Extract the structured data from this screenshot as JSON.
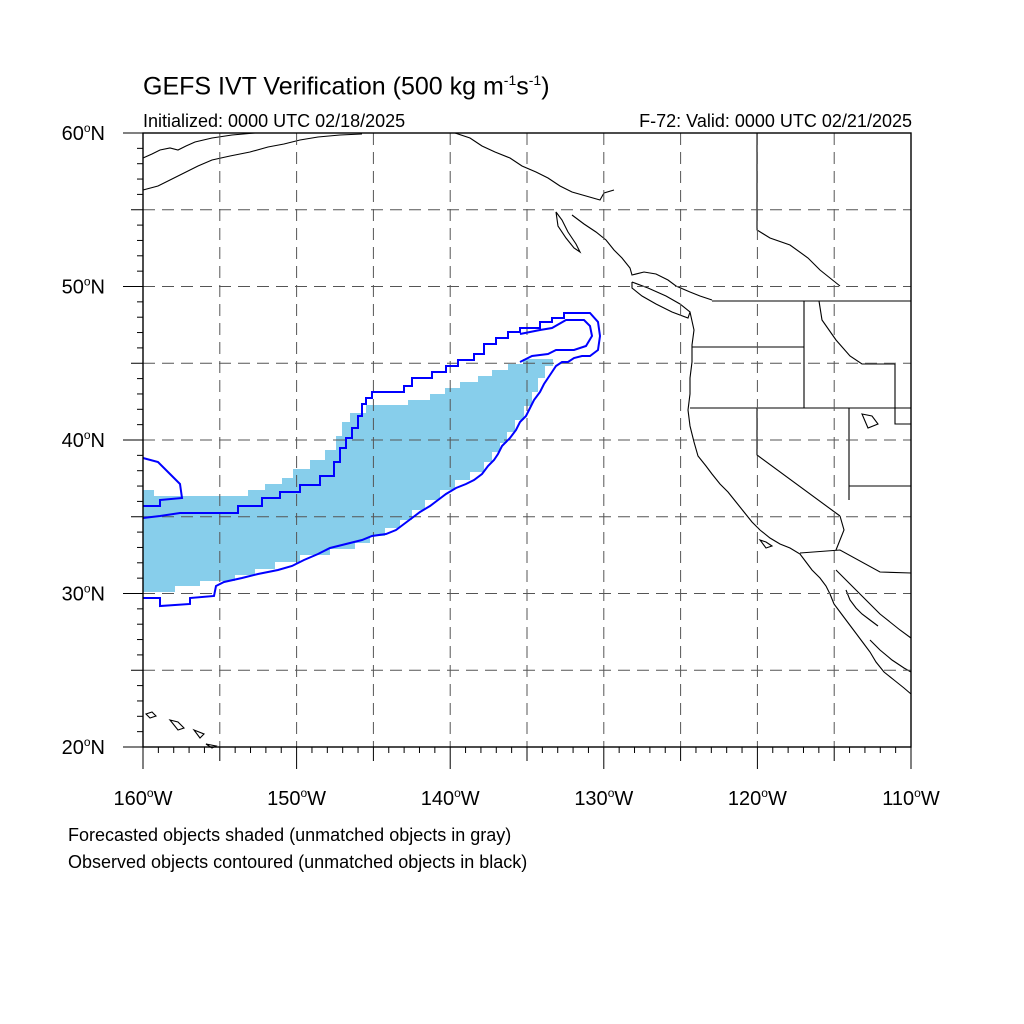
{
  "title_main": "GEFS IVT Verification (500 kg m",
  "title_exp1": "-1",
  "title_mid": "s",
  "title_exp2": "-1",
  "title_end": ")",
  "init_text": "Initialized: 0000 UTC 02/18/2025",
  "valid_text": "F-72: Valid: 0000 UTC 02/21/2025",
  "footnotes": [
    "Forecasted objects shaded (unmatched objects in gray)",
    "Observed objects contoured (unmatched objects in black)"
  ],
  "map": {
    "projection": "cylindrical equidistant",
    "lon_range": [
      -160,
      -110
    ],
    "lat_range": [
      20,
      60
    ],
    "lat_tick_labels": [
      "20°N",
      "30°N",
      "40°N",
      "50°N",
      "60°N"
    ],
    "lon_tick_labels": [
      "160°W",
      "150°W",
      "140°W",
      "130°W",
      "120°W",
      "110°W"
    ],
    "gridlines": "dashed every 5°",
    "colors": {
      "forecast_fill": "#87ceeb",
      "observed_contour": "#0000ff",
      "coastline": "#000000",
      "grid": "#555555"
    }
  }
}
